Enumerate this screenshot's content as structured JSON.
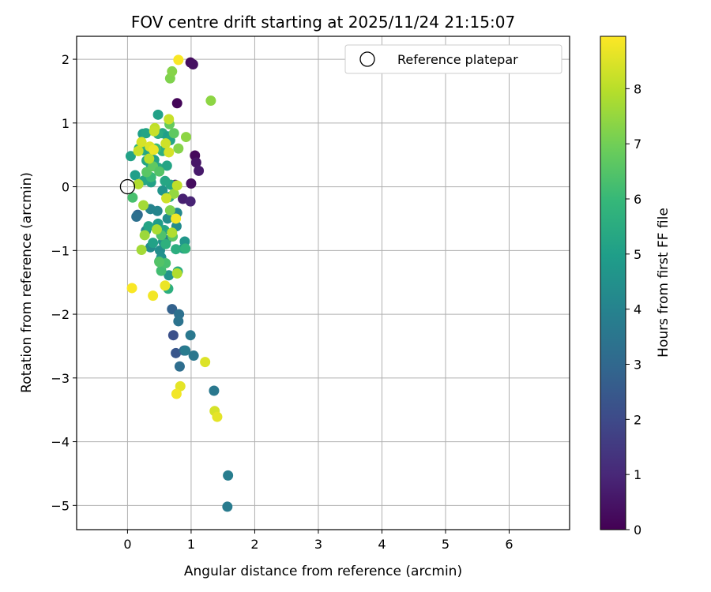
{
  "chart_data": {
    "type": "scatter",
    "title": "FOV centre drift starting at 2025/11/24 21:15:07",
    "xlabel": "Angular distance from reference (arcmin)",
    "ylabel": "Rotation from reference (arcmin)",
    "xlim": [
      -0.8,
      6.95
    ],
    "ylim": [
      -5.38,
      2.36
    ],
    "xticks": [
      0,
      1,
      2,
      3,
      4,
      5,
      6
    ],
    "yticks": [
      2,
      1,
      0,
      -1,
      -2,
      -3,
      -4,
      -5
    ],
    "grid": true,
    "legend": {
      "position": "top-right",
      "entries": [
        "Reference platepar"
      ]
    },
    "reference_point": {
      "x": 0,
      "y": 0
    },
    "colorbar": {
      "label": "Hours from first FF file",
      "min": 0,
      "max": 8.95,
      "ticks": [
        0,
        1,
        2,
        3,
        4,
        5,
        6,
        7,
        8
      ],
      "colormap": "viridis"
    },
    "points": [
      {
        "x": 0.78,
        "y": 1.31,
        "c": 0.1
      },
      {
        "x": 0.99,
        "y": 1.95,
        "c": 0.3
      },
      {
        "x": 1.03,
        "y": 1.92,
        "c": 0.4
      },
      {
        "x": 1.06,
        "y": 0.49,
        "c": 0.2
      },
      {
        "x": 1.08,
        "y": 0.38,
        "c": 0.5
      },
      {
        "x": 1.12,
        "y": 0.25,
        "c": 0.6
      },
      {
        "x": 1.0,
        "y": 0.05,
        "c": 0.3
      },
      {
        "x": 0.87,
        "y": -0.19,
        "c": 0.8
      },
      {
        "x": 0.99,
        "y": -0.23,
        "c": 0.9
      },
      {
        "x": 0.75,
        "y": 0.03,
        "c": 1.0
      },
      {
        "x": 0.72,
        "y": -2.33,
        "c": 2.2
      },
      {
        "x": 0.76,
        "y": -2.61,
        "c": 2.4
      },
      {
        "x": 0.7,
        "y": -1.92,
        "c": 2.8
      },
      {
        "x": 0.89,
        "y": -2.57,
        "c": 3.0
      },
      {
        "x": 0.82,
        "y": -2.82,
        "c": 3.2
      },
      {
        "x": 0.81,
        "y": -2.0,
        "c": 3.3
      },
      {
        "x": 0.8,
        "y": -2.11,
        "c": 3.4
      },
      {
        "x": 0.99,
        "y": -2.33,
        "c": 3.6
      },
      {
        "x": 1.04,
        "y": -2.65,
        "c": 3.5
      },
      {
        "x": 0.91,
        "y": -2.57,
        "c": 3.7
      },
      {
        "x": 1.36,
        "y": -3.2,
        "c": 3.6
      },
      {
        "x": 1.58,
        "y": -4.53,
        "c": 3.8
      },
      {
        "x": 1.57,
        "y": -5.02,
        "c": 3.7
      },
      {
        "x": 0.16,
        "y": -0.44,
        "c": 3.0
      },
      {
        "x": 0.14,
        "y": -0.47,
        "c": 3.3
      },
      {
        "x": 0.36,
        "y": -0.35,
        "c": 4.0
      },
      {
        "x": 0.47,
        "y": -0.38,
        "c": 4.1
      },
      {
        "x": 0.29,
        "y": -0.69,
        "c": 4.2
      },
      {
        "x": 0.36,
        "y": -0.95,
        "c": 4.3
      },
      {
        "x": 0.51,
        "y": -1.0,
        "c": 4.4
      },
      {
        "x": 0.56,
        "y": -0.86,
        "c": 4.5
      },
      {
        "x": 0.61,
        "y": -0.84,
        "c": 3.9
      },
      {
        "x": 0.65,
        "y": -1.39,
        "c": 4.6
      },
      {
        "x": 0.78,
        "y": -0.41,
        "c": 4.2
      },
      {
        "x": 0.77,
        "y": -0.62,
        "c": 4.3
      },
      {
        "x": 0.9,
        "y": -0.86,
        "c": 4.7
      },
      {
        "x": 0.88,
        "y": -0.97,
        "c": 4.8
      },
      {
        "x": 0.48,
        "y": -0.58,
        "c": 4.9
      },
      {
        "x": 0.53,
        "y": -1.11,
        "c": 4.5
      },
      {
        "x": 0.63,
        "y": -0.5,
        "c": 4.4
      },
      {
        "x": 0.55,
        "y": -0.06,
        "c": 4.6
      },
      {
        "x": 0.12,
        "y": 0.18,
        "c": 5.0
      },
      {
        "x": 0.05,
        "y": 0.48,
        "c": 5.1
      },
      {
        "x": 0.24,
        "y": 0.83,
        "c": 5.0
      },
      {
        "x": 0.29,
        "y": 0.84,
        "c": 5.2
      },
      {
        "x": 0.48,
        "y": 1.13,
        "c": 5.1
      },
      {
        "x": 0.55,
        "y": 0.84,
        "c": 5.3
      },
      {
        "x": 0.63,
        "y": 0.79,
        "c": 5.0
      },
      {
        "x": 0.67,
        "y": 0.73,
        "c": 5.2
      },
      {
        "x": 0.26,
        "y": 0.57,
        "c": 5.4
      },
      {
        "x": 0.35,
        "y": 0.54,
        "c": 5.3
      },
      {
        "x": 0.42,
        "y": 0.42,
        "c": 5.1
      },
      {
        "x": 0.3,
        "y": 0.41,
        "c": 5.2
      },
      {
        "x": 0.37,
        "y": 0.33,
        "c": 5.3
      },
      {
        "x": 0.48,
        "y": 0.3,
        "c": 5.4
      },
      {
        "x": 0.62,
        "y": 0.33,
        "c": 5.2
      },
      {
        "x": 0.37,
        "y": 0.07,
        "c": 5.1
      },
      {
        "x": 0.26,
        "y": 0.1,
        "c": 5.3
      },
      {
        "x": 0.33,
        "y": -0.62,
        "c": 5.2
      },
      {
        "x": 0.58,
        "y": -0.68,
        "c": 5.3
      },
      {
        "x": 0.4,
        "y": -0.88,
        "c": 5.1
      },
      {
        "x": 0.5,
        "y": -1.17,
        "c": 5.4
      },
      {
        "x": 0.64,
        "y": -1.6,
        "c": 5.6
      },
      {
        "x": 0.79,
        "y": -1.33,
        "c": 5.5
      },
      {
        "x": 0.76,
        "y": -0.98,
        "c": 5.6
      },
      {
        "x": 0.6,
        "y": -0.9,
        "c": 5.7
      },
      {
        "x": 0.91,
        "y": -0.97,
        "c": 5.8
      },
      {
        "x": 0.68,
        "y": 0.03,
        "c": 5.2
      },
      {
        "x": 0.59,
        "y": 0.09,
        "c": 5.3
      },
      {
        "x": 0.66,
        "y": -0.16,
        "c": 5.4
      },
      {
        "x": 0.48,
        "y": 0.83,
        "c": 5.5
      },
      {
        "x": 0.55,
        "y": 0.56,
        "c": 5.6
      },
      {
        "x": 0.18,
        "y": 0.6,
        "c": 5.9
      },
      {
        "x": 0.37,
        "y": 0.15,
        "c": 6.0
      },
      {
        "x": 0.45,
        "y": 0.6,
        "c": 6.1
      },
      {
        "x": 0.53,
        "y": -1.32,
        "c": 6.2
      },
      {
        "x": 0.6,
        "y": -1.2,
        "c": 6.3
      },
      {
        "x": 0.53,
        "y": -0.76,
        "c": 6.4
      },
      {
        "x": 0.5,
        "y": -1.18,
        "c": 6.5
      },
      {
        "x": 0.71,
        "y": -0.78,
        "c": 6.6
      },
      {
        "x": 0.08,
        "y": -0.17,
        "c": 6.3
      },
      {
        "x": 0.3,
        "y": 0.23,
        "c": 6.6
      },
      {
        "x": 0.4,
        "y": 0.32,
        "c": 6.7
      },
      {
        "x": 0.5,
        "y": 0.24,
        "c": 6.5
      },
      {
        "x": 0.66,
        "y": 0.98,
        "c": 6.8
      },
      {
        "x": 0.73,
        "y": 0.84,
        "c": 6.7
      },
      {
        "x": 0.67,
        "y": 1.7,
        "c": 7.2
      },
      {
        "x": 0.7,
        "y": 1.81,
        "c": 7.3
      },
      {
        "x": 1.31,
        "y": 1.35,
        "c": 7.4
      },
      {
        "x": 0.8,
        "y": 0.6,
        "c": 7.3
      },
      {
        "x": 0.92,
        "y": 0.78,
        "c": 7.4
      },
      {
        "x": 0.67,
        "y": -0.37,
        "c": 7.2
      },
      {
        "x": 0.73,
        "y": -0.11,
        "c": 7.5
      },
      {
        "x": 0.27,
        "y": -0.76,
        "c": 7.6
      },
      {
        "x": 0.22,
        "y": -0.99,
        "c": 7.7
      },
      {
        "x": 0.46,
        "y": -0.67,
        "c": 7.8
      },
      {
        "x": 0.7,
        "y": -0.72,
        "c": 7.9
      },
      {
        "x": 0.78,
        "y": -1.36,
        "c": 7.9
      },
      {
        "x": 0.25,
        "y": -0.29,
        "c": 7.7
      },
      {
        "x": 0.17,
        "y": 0.04,
        "c": 7.9
      },
      {
        "x": 0.34,
        "y": 0.44,
        "c": 8.0
      },
      {
        "x": 0.43,
        "y": 0.92,
        "c": 8.1
      },
      {
        "x": 0.65,
        "y": 1.06,
        "c": 8.2
      },
      {
        "x": 0.78,
        "y": 0.02,
        "c": 8.1
      },
      {
        "x": 0.6,
        "y": 0.68,
        "c": 8.3
      },
      {
        "x": 0.17,
        "y": 0.56,
        "c": 8.2
      },
      {
        "x": 0.22,
        "y": 0.7,
        "c": 8.4
      },
      {
        "x": 0.35,
        "y": 0.63,
        "c": 8.5
      },
      {
        "x": 0.61,
        "y": -0.18,
        "c": 8.3
      },
      {
        "x": 0.76,
        "y": -0.5,
        "c": 8.8
      },
      {
        "x": 0.59,
        "y": -1.55,
        "c": 8.7
      },
      {
        "x": 0.4,
        "y": -1.71,
        "c": 8.8
      },
      {
        "x": 0.07,
        "y": -1.59,
        "c": 8.9
      },
      {
        "x": 0.8,
        "y": 1.99,
        "c": 8.9
      },
      {
        "x": 0.83,
        "y": -3.13,
        "c": 8.6
      },
      {
        "x": 0.77,
        "y": -3.25,
        "c": 8.8
      },
      {
        "x": 1.22,
        "y": -2.75,
        "c": 8.5
      },
      {
        "x": 1.37,
        "y": -3.52,
        "c": 8.4
      },
      {
        "x": 1.41,
        "y": -3.61,
        "c": 8.6
      },
      {
        "x": 0.41,
        "y": 0.58,
        "c": 8.7
      },
      {
        "x": 0.65,
        "y": 0.54,
        "c": 8.4
      },
      {
        "x": 0.42,
        "y": 0.87,
        "c": 8.2
      }
    ]
  }
}
